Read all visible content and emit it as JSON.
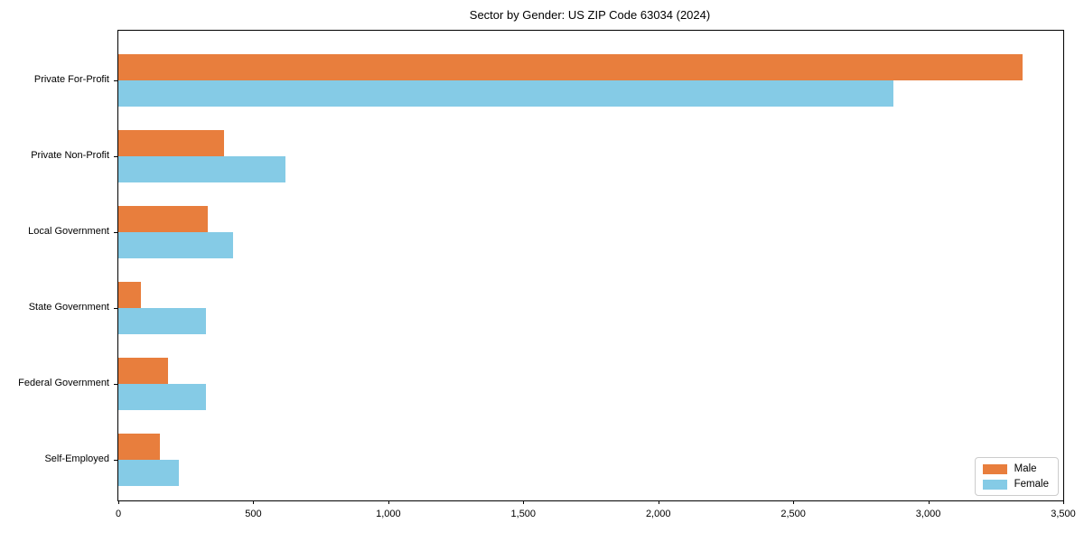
{
  "chart_data": {
    "type": "bar",
    "orientation": "horizontal",
    "title": "Sector by Gender: US ZIP Code 63034 (2024)",
    "categories": [
      "Private For-Profit",
      "Private Non-Profit",
      "Local Government",
      "State Government",
      "Federal Government",
      "Self-Employed"
    ],
    "series": [
      {
        "name": "Male",
        "color": "#e87e3d",
        "values": [
          3350,
          390,
          330,
          85,
          185,
          155
        ]
      },
      {
        "name": "Female",
        "color": "#85cbe6",
        "values": [
          2870,
          620,
          425,
          325,
          325,
          225
        ]
      }
    ],
    "xlabel": "",
    "ylabel": "",
    "xlim": [
      0,
      3500
    ],
    "xticks": [
      0,
      500,
      1000,
      1500,
      2000,
      2500,
      3000,
      3500
    ],
    "xtick_labels": [
      "0",
      "500",
      "1,000",
      "1,500",
      "2,000",
      "2,500",
      "3,000",
      "3,500"
    ],
    "grid": false,
    "legend_position": "lower right",
    "axis_color": "#000000"
  }
}
